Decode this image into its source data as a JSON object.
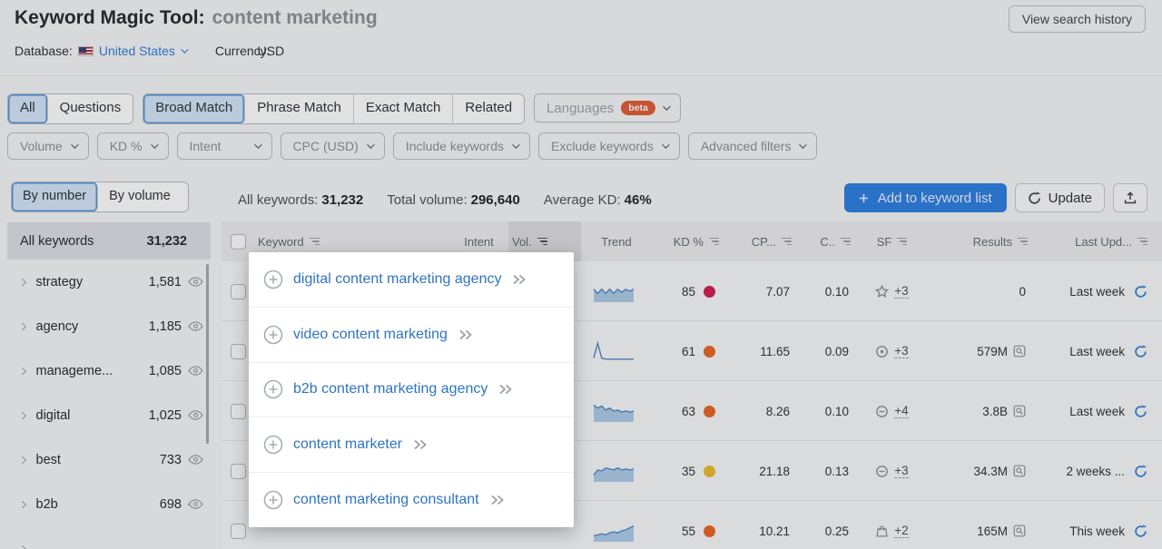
{
  "header": {
    "title": "Keyword Magic Tool:",
    "query": "content marketing",
    "view_history": "View search history",
    "database_label": "Database:",
    "database_value": "United States",
    "currency_label": "Currency:",
    "currency_value": "USD"
  },
  "tabs": {
    "group1": [
      {
        "label": "All"
      },
      {
        "label": "Questions"
      }
    ],
    "group2": [
      {
        "label": "Broad Match"
      },
      {
        "label": "Phrase Match"
      },
      {
        "label": "Exact Match"
      },
      {
        "label": "Related"
      }
    ],
    "languages_label": "Languages",
    "languages_badge": "beta"
  },
  "filters": [
    "Volume",
    "KD %",
    "Intent",
    "CPC (USD)",
    "Include keywords",
    "Exclude keywords",
    "Advanced filters"
  ],
  "sidebar": {
    "toggle": [
      {
        "label": "By number"
      },
      {
        "label": "By volume"
      }
    ],
    "all_row": {
      "label": "All keywords",
      "count": "31,232"
    },
    "items": [
      {
        "label": "strategy",
        "count": "1,581"
      },
      {
        "label": "agency",
        "count": "1,185"
      },
      {
        "label": "manageme...",
        "count": "1,085"
      },
      {
        "label": "digital",
        "count": "1,025"
      },
      {
        "label": "best",
        "count": "733"
      },
      {
        "label": "b2b",
        "count": "698"
      }
    ]
  },
  "stats": {
    "all_label": "All keywords:",
    "all_value": "31,232",
    "volume_label": "Total volume:",
    "volume_value": "296,640",
    "kd_label": "Average KD:",
    "kd_value": "46%"
  },
  "actions": {
    "add": "Add to keyword list",
    "update": "Update"
  },
  "table": {
    "columns": [
      "Keyword",
      "Intent",
      "Vol.",
      "Trend",
      "KD %",
      "CP...",
      "C..",
      "SF",
      "Results",
      "Last Upd..."
    ],
    "rows": [
      {
        "kd": "85",
        "kd_color": "#cc1d4d",
        "cpc": "7.07",
        "com": "0.10",
        "sf_icon": "star",
        "sf": "+3",
        "results": "0",
        "serp": false,
        "updated": "Last week",
        "trend": [
          6,
          4,
          6,
          4,
          6,
          4,
          6,
          4.5,
          6,
          5,
          6
        ],
        "trend_fill": true
      },
      {
        "kd": "61",
        "kd_color": "#e9641f",
        "cpc": "11.65",
        "com": "0.09",
        "sf_icon": "pin",
        "sf": "+3",
        "results": "579M",
        "serp": true,
        "updated": "Last week",
        "trend": [
          1.5,
          9,
          1.5,
          1,
          1,
          1,
          1,
          1,
          1,
          1,
          1
        ],
        "trend_fill": false
      },
      {
        "kd": "63",
        "kd_color": "#e9641f",
        "cpc": "8.26",
        "com": "0.10",
        "sf_icon": "link",
        "sf": "+4",
        "results": "3.8B",
        "serp": true,
        "updated": "Last week",
        "trend": [
          8,
          6.5,
          7.5,
          5.5,
          6.5,
          5,
          5.5,
          4.5,
          5,
          4.5,
          5
        ],
        "trend_fill": true
      },
      {
        "kd": "35",
        "kd_color": "#edba2c",
        "cpc": "21.18",
        "com": "0.13",
        "sf_icon": "link",
        "sf": "+3",
        "results": "34.3M",
        "serp": true,
        "updated": "2 weeks ...",
        "trend": [
          3,
          5.5,
          5,
          6.5,
          6,
          5.5,
          6.5,
          5.5,
          6,
          5.5,
          6
        ],
        "trend_fill": true
      },
      {
        "kd": "55",
        "kd_color": "#e9641f",
        "cpc": "10.21",
        "com": "0.25",
        "sf_icon": "bag",
        "sf": "+2",
        "results": "165M",
        "serp": true,
        "updated": "This week",
        "trend": [
          2.5,
          3,
          3.5,
          3,
          4,
          4.5,
          4,
          5,
          5.5,
          6.5,
          7.5
        ],
        "trend_fill": true
      }
    ]
  },
  "popup": {
    "items": [
      "digital content marketing agency",
      "video content marketing",
      "b2b content marketing agency",
      "content marketer",
      "content marketing consultant"
    ]
  },
  "colors": {
    "accent_blue": "#2a7de1",
    "link_blue": "#2f74c0",
    "beta_orange": "#e05a33"
  }
}
